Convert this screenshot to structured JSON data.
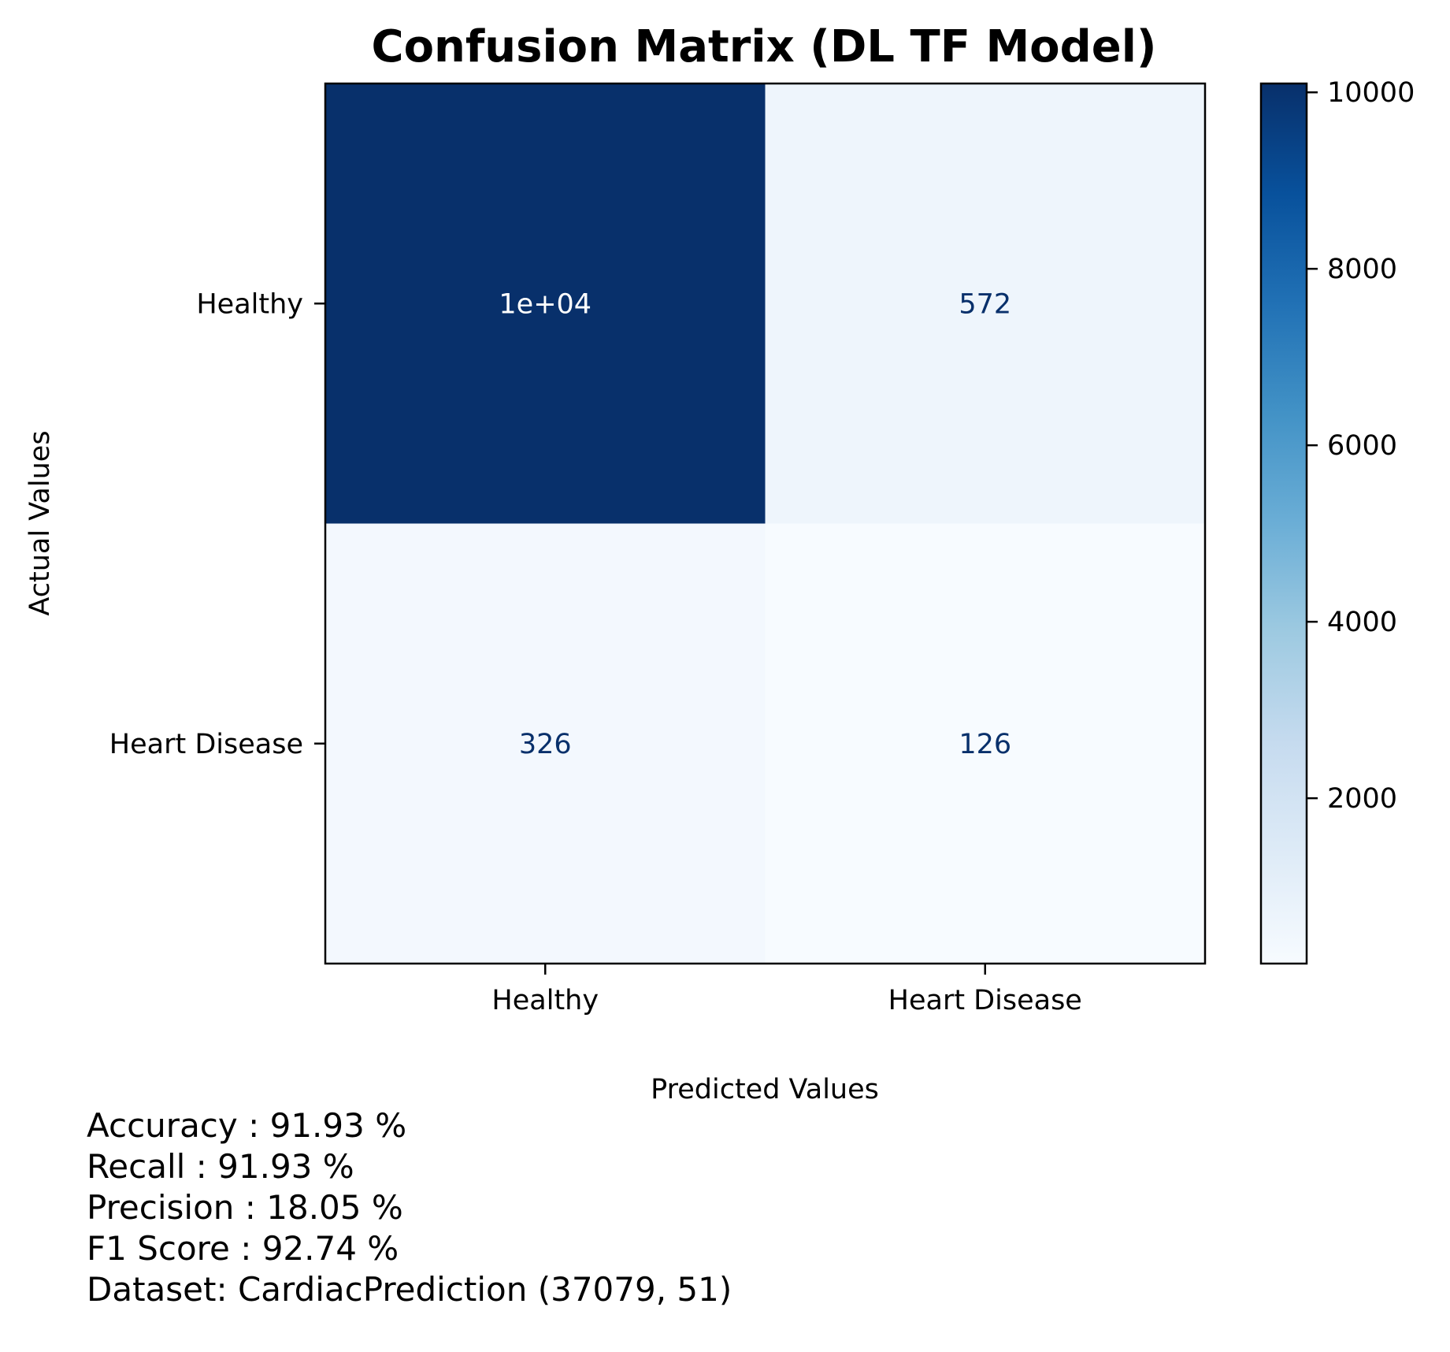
{
  "chart_data": {
    "type": "heatmap",
    "title": "Confusion Matrix (DL TF Model)",
    "xlabel": "Predicted Values",
    "ylabel": "Actual Values",
    "x_categories": [
      "Healthy",
      "Heart Disease"
    ],
    "y_categories": [
      "Healthy",
      "Heart Disease"
    ],
    "values": [
      [
        10100,
        572
      ],
      [
        326,
        126
      ]
    ],
    "cell_labels": [
      [
        "1e+04",
        "572"
      ],
      [
        "326",
        "126"
      ]
    ],
    "colormap": "Blues",
    "colorbar": {
      "min": 126,
      "max": 10100,
      "ticks": [
        2000,
        4000,
        6000,
        8000,
        10000
      ],
      "tick_labels": [
        "2000",
        "4000",
        "6000",
        "8000",
        "10000"
      ]
    },
    "text_colors": {
      "on_dark": "#ffffff",
      "on_light": "#08306b"
    },
    "grid": false
  },
  "metrics": {
    "accuracy": "Accuracy : 91.93 %",
    "recall": "Recall : 91.93 %",
    "precision": "Precision : 18.05 %",
    "f1": "F1 Score : 92.74 %",
    "dataset": "Dataset: CardiacPrediction (37079, 51)"
  }
}
